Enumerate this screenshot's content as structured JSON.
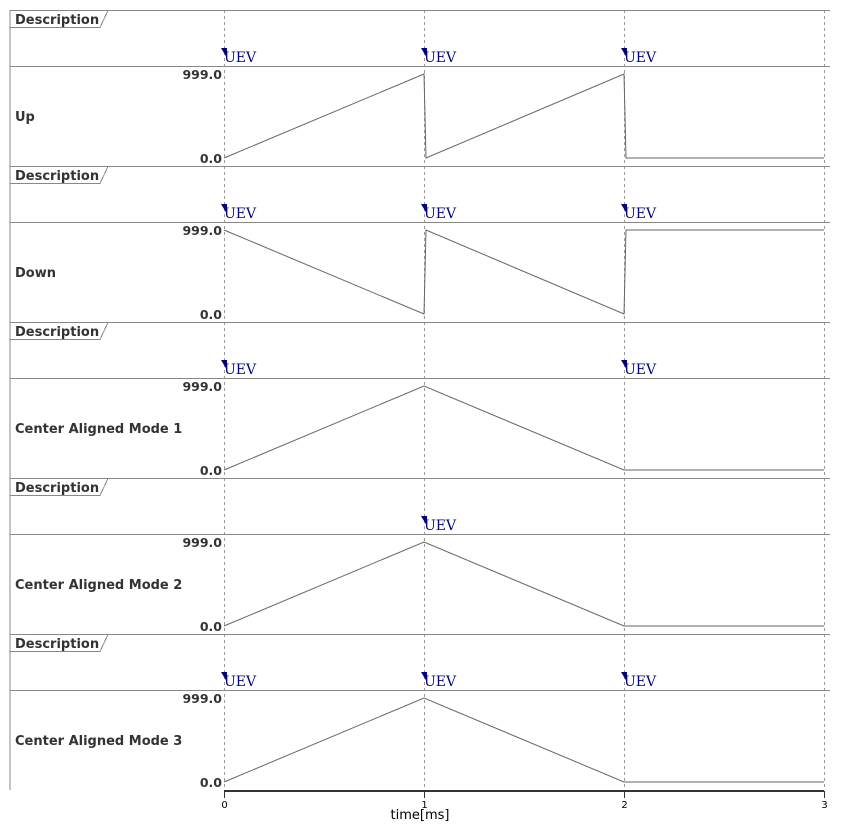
{
  "chart_data": {
    "type": "line",
    "xlabel": "time[ms]",
    "xlim": [
      0,
      3
    ],
    "x_ticks": [
      "0",
      "1",
      "2",
      "3"
    ],
    "grid": "dashed vertical at each ms",
    "event_label": "UEV",
    "description_label": "Description",
    "y_max_label": "999.0",
    "y_min_label": "0.0",
    "ylim": [
      0,
      999
    ],
    "event_color": "#000080",
    "line_color": "#666666",
    "series": [
      {
        "name": "Up",
        "events": [
          0,
          1,
          2
        ],
        "points": [
          [
            0,
            0
          ],
          [
            1,
            999
          ],
          [
            1,
            0
          ],
          [
            2,
            999
          ],
          [
            2,
            0
          ],
          [
            3,
            0
          ]
        ]
      },
      {
        "name": "Down",
        "events": [
          0,
          1,
          2
        ],
        "points": [
          [
            0,
            999
          ],
          [
            1,
            0
          ],
          [
            1,
            999
          ],
          [
            2,
            0
          ],
          [
            2,
            999
          ],
          [
            3,
            999
          ]
        ]
      },
      {
        "name": "Center Aligned Mode 1",
        "events": [
          0,
          2
        ],
        "points": [
          [
            0,
            0
          ],
          [
            1,
            999
          ],
          [
            2,
            0
          ],
          [
            3,
            0
          ]
        ]
      },
      {
        "name": "Center Aligned Mode 2",
        "events": [
          1
        ],
        "points": [
          [
            0,
            0
          ],
          [
            1,
            999
          ],
          [
            2,
            0
          ],
          [
            3,
            0
          ]
        ]
      },
      {
        "name": "Center Aligned Mode 3",
        "events": [
          0,
          1,
          2
        ],
        "points": [
          [
            0,
            0
          ],
          [
            1,
            999
          ],
          [
            2,
            0
          ],
          [
            3,
            0
          ]
        ]
      }
    ]
  }
}
